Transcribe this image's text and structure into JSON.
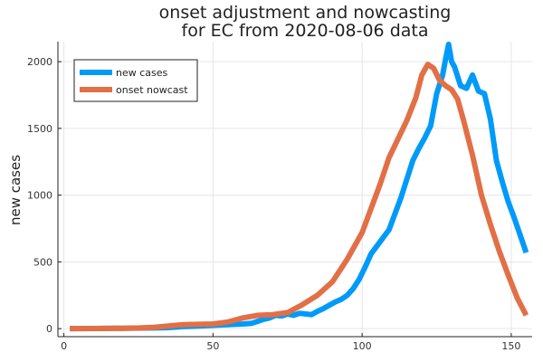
{
  "chart_data": {
    "type": "line",
    "title": [
      "onset adjustment and nowcasting",
      "for EC from 2020-08-06 data"
    ],
    "xlabel": "",
    "ylabel": "new cases",
    "xlim": [
      -2,
      157
    ],
    "ylim": [
      -60,
      2150
    ],
    "xticks": [
      0,
      50,
      100,
      150
    ],
    "yticks": [
      0,
      500,
      1000,
      1500,
      2000
    ],
    "grid": true,
    "legend": "top-left",
    "series": [
      {
        "name": "new cases",
        "color": "#009af9",
        "points": [
          [
            2,
            0
          ],
          [
            10,
            1
          ],
          [
            20,
            3
          ],
          [
            30,
            5
          ],
          [
            35,
            8
          ],
          [
            40,
            15
          ],
          [
            45,
            20
          ],
          [
            50,
            25
          ],
          [
            55,
            30
          ],
          [
            60,
            35
          ],
          [
            63,
            40
          ],
          [
            65,
            55
          ],
          [
            67,
            70
          ],
          [
            69,
            80
          ],
          [
            71,
            100
          ],
          [
            73,
            95
          ],
          [
            75,
            110
          ],
          [
            77,
            100
          ],
          [
            79,
            115
          ],
          [
            81,
            110
          ],
          [
            83,
            105
          ],
          [
            85,
            130
          ],
          [
            87,
            150
          ],
          [
            89,
            175
          ],
          [
            91,
            200
          ],
          [
            93,
            220
          ],
          [
            95,
            250
          ],
          [
            97,
            300
          ],
          [
            99,
            370
          ],
          [
            101,
            460
          ],
          [
            103,
            560
          ],
          [
            105,
            620
          ],
          [
            107,
            680
          ],
          [
            109,
            740
          ],
          [
            111,
            860
          ],
          [
            113,
            980
          ],
          [
            115,
            1120
          ],
          [
            117,
            1260
          ],
          [
            119,
            1350
          ],
          [
            121,
            1430
          ],
          [
            123,
            1520
          ],
          [
            125,
            1760
          ],
          [
            127,
            1900
          ],
          [
            128,
            2020
          ],
          [
            129,
            2130
          ],
          [
            130,
            2000
          ],
          [
            131,
            1960
          ],
          [
            133,
            1820
          ],
          [
            135,
            1800
          ],
          [
            137,
            1900
          ],
          [
            139,
            1780
          ],
          [
            141,
            1760
          ],
          [
            143,
            1570
          ],
          [
            145,
            1260
          ],
          [
            147,
            1100
          ],
          [
            149,
            950
          ],
          [
            151,
            830
          ],
          [
            153,
            700
          ],
          [
            155,
            570
          ]
        ]
      },
      {
        "name": "onset nowcast",
        "color": "#e26f46",
        "points": [
          [
            2,
            0
          ],
          [
            10,
            1
          ],
          [
            20,
            3
          ],
          [
            25,
            5
          ],
          [
            30,
            10
          ],
          [
            35,
            20
          ],
          [
            40,
            30
          ],
          [
            45,
            32
          ],
          [
            50,
            35
          ],
          [
            55,
            50
          ],
          [
            60,
            80
          ],
          [
            65,
            100
          ],
          [
            70,
            105
          ],
          [
            75,
            120
          ],
          [
            80,
            180
          ],
          [
            85,
            250
          ],
          [
            90,
            350
          ],
          [
            95,
            520
          ],
          [
            100,
            720
          ],
          [
            103,
            900
          ],
          [
            106,
            1080
          ],
          [
            109,
            1280
          ],
          [
            112,
            1420
          ],
          [
            115,
            1560
          ],
          [
            118,
            1730
          ],
          [
            120,
            1900
          ],
          [
            122,
            1980
          ],
          [
            124,
            1950
          ],
          [
            126,
            1860
          ],
          [
            128,
            1820
          ],
          [
            130,
            1790
          ],
          [
            132,
            1720
          ],
          [
            134,
            1560
          ],
          [
            137,
            1300
          ],
          [
            140,
            1000
          ],
          [
            143,
            780
          ],
          [
            146,
            580
          ],
          [
            149,
            400
          ],
          [
            152,
            230
          ],
          [
            155,
            100
          ]
        ]
      }
    ]
  }
}
